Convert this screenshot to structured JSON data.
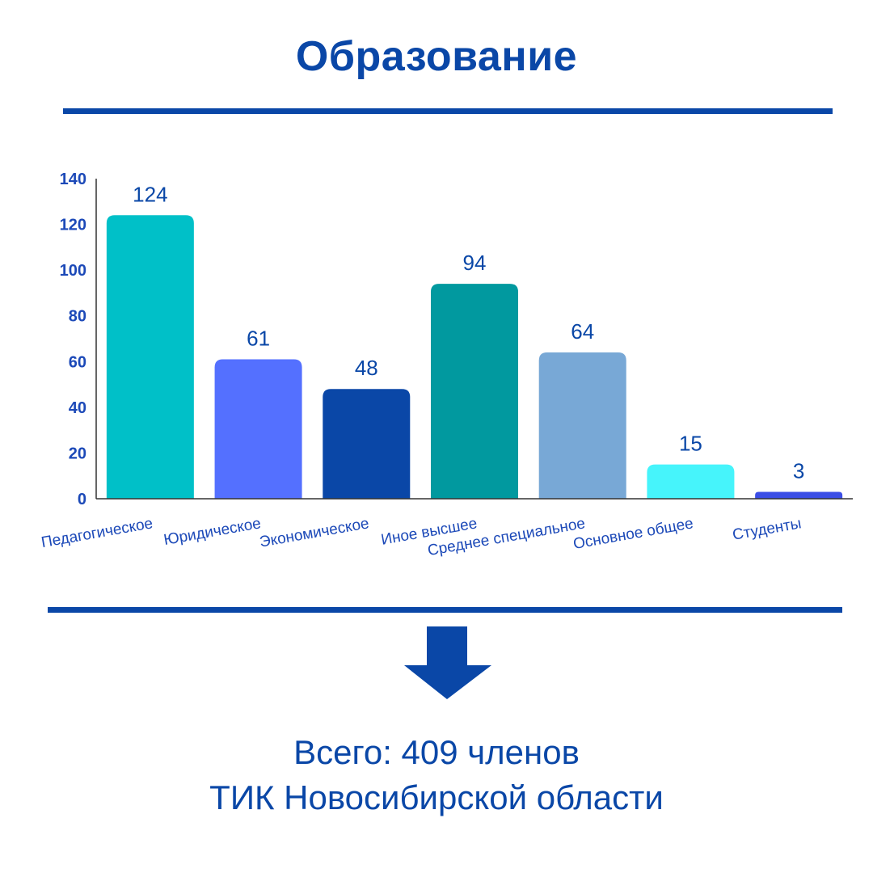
{
  "title": "Образование",
  "footer": {
    "line1": "Всего: 409 членов",
    "line2": "ТИК Новосибирской области"
  },
  "colors": {
    "brand": "#0a47a7",
    "axis_labels": "#1c49b8"
  },
  "chart_data": {
    "type": "bar",
    "title": "",
    "xlabel": "",
    "ylabel": "",
    "categories": [
      "Педагогическое",
      "Юридическое",
      "Экономическое",
      "Иное высшее",
      "Среднее специальное",
      "Основное общее",
      "Студенты"
    ],
    "values": [
      124,
      61,
      48,
      94,
      64,
      15,
      3
    ],
    "colors": [
      "#00c0c8",
      "#5470ff",
      "#0a47a7",
      "#01999f",
      "#78a8d6",
      "#46f4fb",
      "#3b4ee6"
    ],
    "ylim": [
      0,
      140
    ],
    "yticks": [
      0,
      20,
      40,
      60,
      80,
      100,
      120,
      140
    ],
    "data_labels": true,
    "grid": false,
    "legend": "none"
  }
}
